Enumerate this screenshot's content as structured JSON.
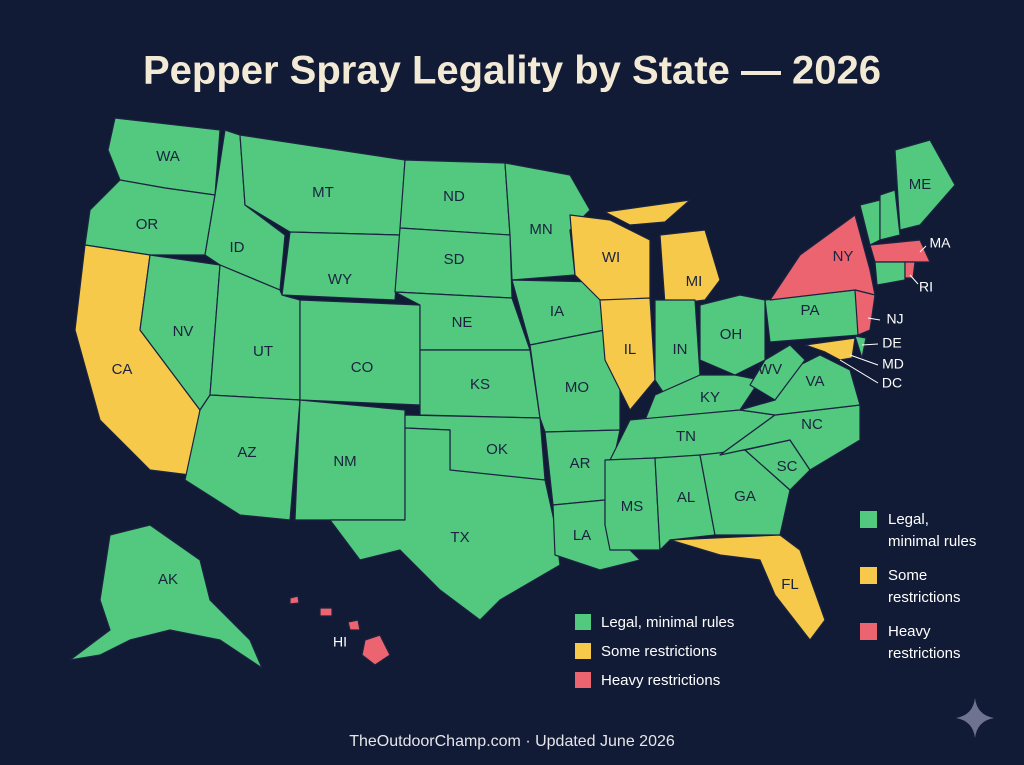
{
  "title": "Pepper Spray Legality by State — 2026",
  "states": [
    {
      "code": "WA",
      "color": "#52c97f"
    },
    {
      "code": "OR",
      "color": "#52c97f"
    },
    {
      "code": "CA",
      "color": "#f7c94b"
    },
    {
      "code": "NV",
      "color": "#52c97f"
    },
    {
      "code": "ID",
      "color": "#52c97f"
    },
    {
      "code": "MT",
      "color": "#52c97f"
    },
    {
      "code": "WY",
      "color": "#52c97f"
    },
    {
      "code": "UT",
      "color": "#52c97f"
    },
    {
      "code": "CO",
      "color": "#52c97f"
    },
    {
      "code": "AZ",
      "color": "#52c97f"
    },
    {
      "code": "NM",
      "color": "#52c97f"
    },
    {
      "code": "ND",
      "color": "#52c97f"
    },
    {
      "code": "SD",
      "color": "#52c97f"
    },
    {
      "code": "NE",
      "color": "#52c97f"
    },
    {
      "code": "KS",
      "color": "#52c97f"
    },
    {
      "code": "OK",
      "color": "#52c97f"
    },
    {
      "code": "TX",
      "color": "#52c97f"
    },
    {
      "code": "MN",
      "color": "#52c97f"
    },
    {
      "code": "IA",
      "color": "#52c97f"
    },
    {
      "code": "MO",
      "color": "#52c97f"
    },
    {
      "code": "AR",
      "color": "#52c97f"
    },
    {
      "code": "LA",
      "color": "#52c97f"
    },
    {
      "code": "WI",
      "color": "#f7c94b"
    },
    {
      "code": "MI",
      "color": "#f7c94b"
    },
    {
      "code": "IL",
      "color": "#f7c94b"
    },
    {
      "code": "IN",
      "color": "#52c97f"
    },
    {
      "code": "OH",
      "color": "#52c97f"
    },
    {
      "code": "KY",
      "color": "#52c97f"
    },
    {
      "code": "TN",
      "color": "#52c97f"
    },
    {
      "code": "MS",
      "color": "#52c97f"
    },
    {
      "code": "AL",
      "color": "#52c97f"
    },
    {
      "code": "GA",
      "color": "#52c97f"
    },
    {
      "code": "FL",
      "color": "#f7c94b"
    },
    {
      "code": "SC",
      "color": "#52c97f"
    },
    {
      "code": "NC",
      "color": "#52c97f"
    },
    {
      "code": "VA",
      "color": "#52c97f"
    },
    {
      "code": "WV",
      "color": "#52c97f"
    },
    {
      "code": "PA",
      "color": "#52c97f"
    },
    {
      "code": "NY",
      "color": "#ec6470"
    },
    {
      "code": "NJ",
      "color": "#ec6470"
    },
    {
      "code": "DE",
      "color": "#52c97f"
    },
    {
      "code": "MD",
      "color": "#f7c94b"
    },
    {
      "code": "DC",
      "color": "#f7c94b"
    },
    {
      "code": "ME",
      "color": "#52c97f"
    },
    {
      "code": "MA",
      "color": "#ec6470"
    },
    {
      "code": "RI",
      "color": "#ec6470"
    },
    {
      "code": "AK",
      "color": "#52c97f"
    },
    {
      "code": "HI",
      "color": "#ec6470"
    }
  ],
  "legend": [
    {
      "label": "Legal, minimal rules",
      "color": "#52c97f"
    },
    {
      "label": "Some restrictions",
      "color": "#f7c94b"
    },
    {
      "label": "Heavy restrictions",
      "color": "#ec6470"
    }
  ],
  "legend_side": [
    {
      "lines": [
        "Legal,",
        "minimal rules"
      ],
      "color": "#52c97f"
    },
    {
      "lines": [
        "Some",
        "restrictions"
      ],
      "color": "#f7c94b"
    },
    {
      "lines": [
        "Heavy",
        "restrictions"
      ],
      "color": "#ec6470"
    }
  ],
  "footer": "TheOutdoorChamp.com · Updated June 2026"
}
